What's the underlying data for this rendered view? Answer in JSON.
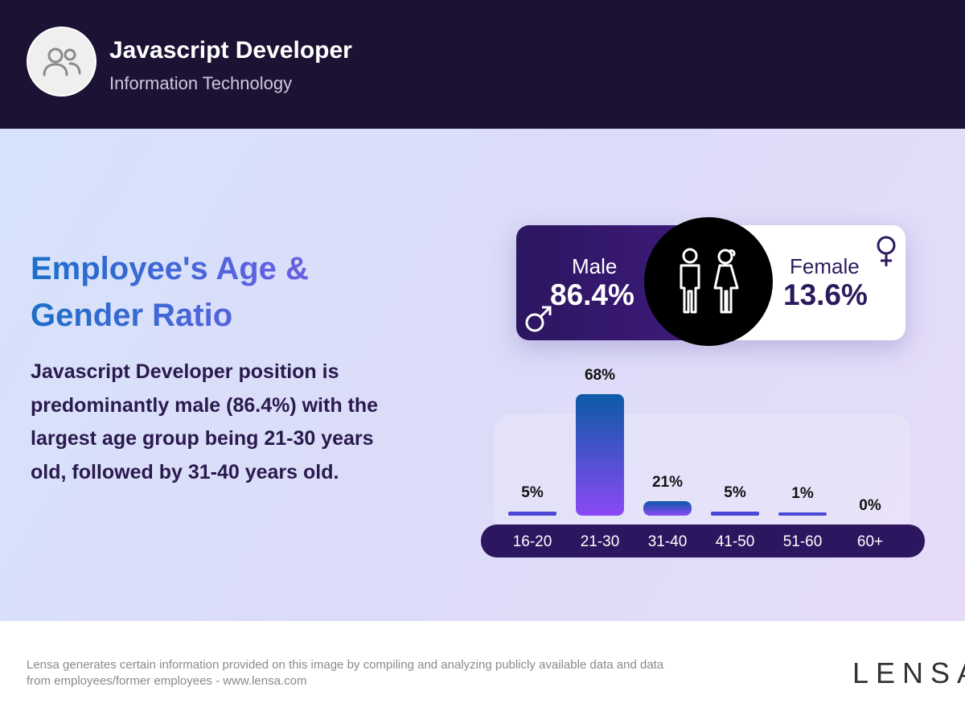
{
  "header": {
    "title": "Javascript Developer",
    "subtitle": "Information Technology",
    "icon": "users-icon"
  },
  "main": {
    "title": "Employee's Age & Gender Ratio",
    "description": "Javascript Developer position is predominantly male (86.4%) with the largest age group being 21-30 years old, followed by 31-40 years old."
  },
  "gender": {
    "male_label": "Male",
    "male_value": "86.4%",
    "female_label": "Female",
    "female_value": "13.6%"
  },
  "chart_data": {
    "type": "bar",
    "categories": [
      "16-20",
      "21-30",
      "31-40",
      "41-50",
      "51-60",
      "60+"
    ],
    "values": [
      5,
      68,
      21,
      5,
      1,
      0
    ],
    "labels": [
      "5%",
      "68%",
      "21%",
      "5%",
      "1%",
      "0%"
    ],
    "colors": {
      "bar_top": "#0c5aa6",
      "bar_bottom": "#8c48f5",
      "axis": "#2d1660"
    }
  },
  "footer": {
    "disclaimer": "Lensa generates certain information provided on this image by compiling and analyzing publicly available data and data from employees/former employees - www.lensa.com",
    "logo": "LENSA"
  }
}
